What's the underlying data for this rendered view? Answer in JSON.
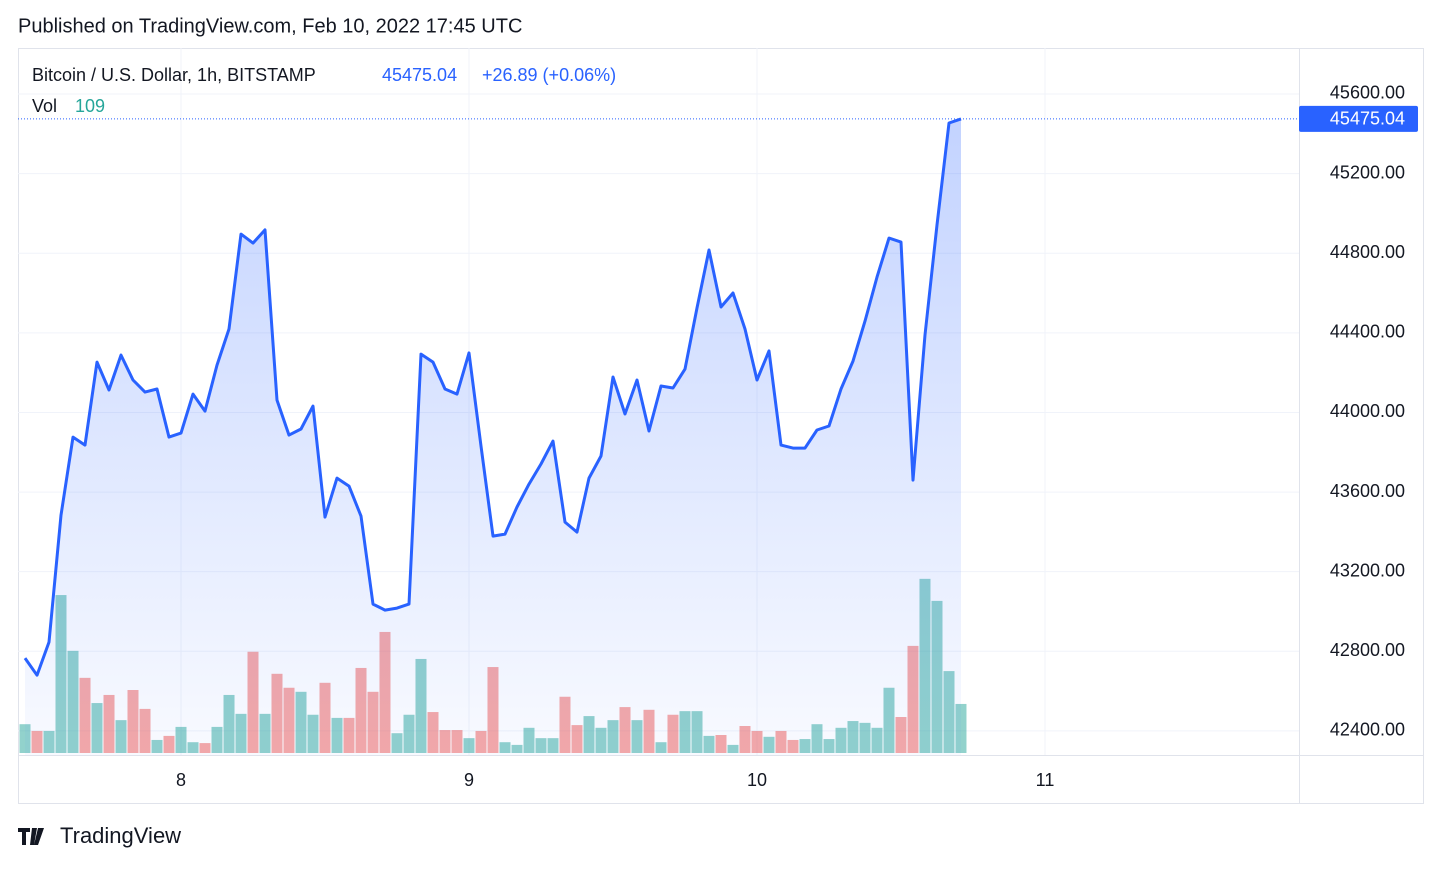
{
  "chart_data": {
    "type": "line",
    "published": "Published on TradingView.com, Feb 10, 2022 17:45 UTC",
    "title": "Bitcoin / U.S. Dollar, 1h, BITSTAMP",
    "change_label": "+26.89 (+0.06%)",
    "brand": "TradingView",
    "grid": true,
    "x": [
      7.4583,
      7.5,
      7.5417,
      7.5833,
      7.625,
      7.6667,
      7.7083,
      7.75,
      7.7917,
      7.8333,
      7.875,
      7.9167,
      7.9583,
      8,
      8.0417,
      8.0833,
      8.125,
      8.1667,
      8.2083,
      8.25,
      8.2917,
      8.3333,
      8.375,
      8.4167,
      8.4583,
      8.5,
      8.5417,
      8.5833,
      8.625,
      8.6667,
      8.7083,
      8.75,
      8.7917,
      8.8333,
      8.875,
      8.9167,
      8.9583,
      9,
      9.0417,
      9.0833,
      9.125,
      9.1667,
      9.2083,
      9.25,
      9.2917,
      9.3333,
      9.375,
      9.4167,
      9.4583,
      9.5,
      9.5417,
      9.5833,
      9.625,
      9.6667,
      9.7083,
      9.75,
      9.7917,
      9.8333,
      9.875,
      9.9167,
      9.9583,
      10,
      10.0417,
      10.0833,
      10.125,
      10.1667,
      10.2083,
      10.25,
      10.2917,
      10.3333,
      10.375,
      10.4167,
      10.4583,
      10.5,
      10.5417,
      10.5833,
      10.625,
      10.6667,
      10.7083
    ],
    "xlim": [
      7.434,
      11.882
    ],
    "xticks": [
      8,
      9,
      10,
      11
    ],
    "ylim": [
      42279,
      45831
    ],
    "yticks": [
      {
        "value": 42400,
        "label": "42400.00"
      },
      {
        "value": 42800,
        "label": "42800.00"
      },
      {
        "value": 43200,
        "label": "43200.00"
      },
      {
        "value": 43600,
        "label": "43600.00"
      },
      {
        "value": 44000,
        "label": "44000.00"
      },
      {
        "value": 44400,
        "label": "44400.00"
      },
      {
        "value": 44800,
        "label": "44800.00"
      },
      {
        "value": 45200,
        "label": "45200.00"
      },
      {
        "value": 45600,
        "label": "45600.00"
      }
    ],
    "series": [
      {
        "color": "#2962ff",
        "values": [
          42766,
          42680,
          42846,
          43484,
          43876,
          43836,
          44253,
          44113,
          44288,
          44163,
          44102,
          44118,
          43876,
          43896,
          44092,
          44007,
          44238,
          44419,
          44896,
          44851,
          44917,
          44062,
          43886,
          43917,
          44032,
          43474,
          43670,
          43630,
          43479,
          43037,
          43007,
          43017,
          43037,
          44293,
          44253,
          44118,
          44092,
          44299,
          43831,
          43379,
          43389,
          43525,
          43640,
          43741,
          43856,
          43449,
          43399,
          43670,
          43781,
          44178,
          43992,
          44163,
          43907,
          44133,
          44123,
          44218,
          44525,
          44816,
          44530,
          44600,
          44419,
          44163,
          44309,
          43836,
          43821,
          43821,
          43912,
          43932,
          44118,
          44258,
          44459,
          44680,
          44876,
          44856,
          43660,
          44389,
          44942,
          45454,
          45475.04
        ]
      }
    ],
    "volume": {
      "name": "Vol",
      "up_color": "#26a69a",
      "down_color": "#ef5350",
      "ylim": [
        0,
        500
      ],
      "values": [
        64,
        49,
        49,
        351,
        227,
        167,
        111,
        129,
        73,
        140,
        98,
        29,
        38,
        58,
        24,
        22,
        58,
        129,
        87,
        225,
        87,
        176,
        145,
        136,
        85,
        156,
        78,
        78,
        189,
        136,
        269,
        44,
        85,
        209,
        91,
        51,
        51,
        33,
        49,
        191,
        24,
        18,
        56,
        33,
        33,
        125,
        62,
        82,
        56,
        73,
        102,
        73,
        96,
        24,
        85,
        93,
        93,
        38,
        40,
        18,
        60,
        49,
        36,
        49,
        29,
        31,
        64,
        31,
        56,
        71,
        67,
        56,
        145,
        80,
        238,
        387,
        338,
        182,
        109
      ]
    }
  }
}
